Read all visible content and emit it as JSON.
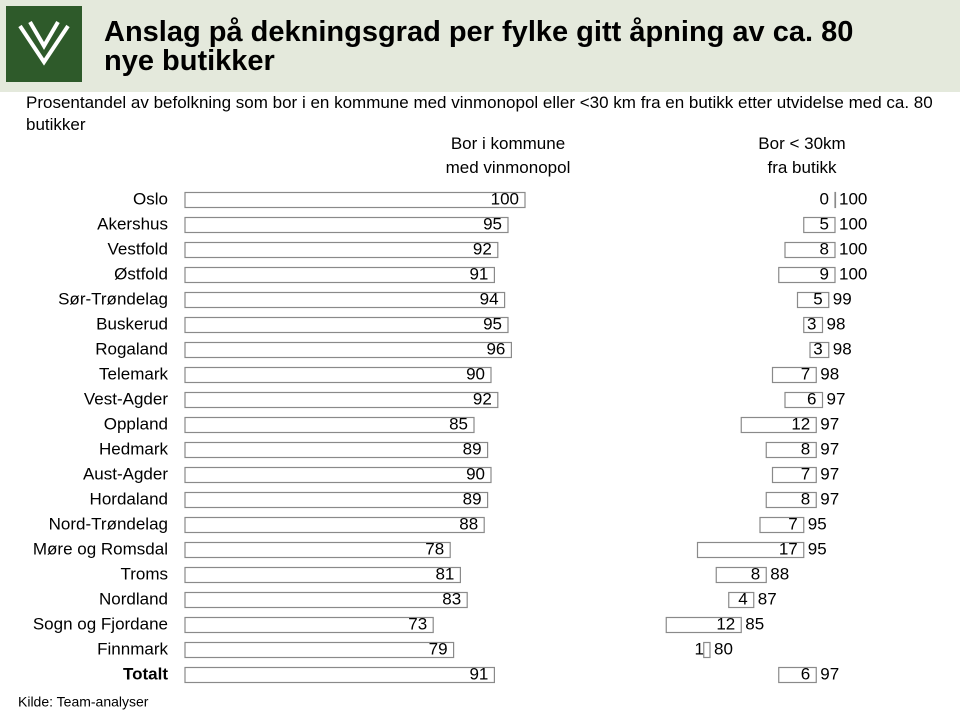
{
  "chart_data": {
    "type": "bar",
    "title": "Anslag på dekningsgrad per fylke gitt åpning av ca. 80 nye butikker",
    "subtitle": "Prosentandel av befolkning som bor i en kommune med vinmonopol eller <30 km fra en butikk etter utvidelse med ca. 80 butikker",
    "source": "Kilde: Team-analyser",
    "categories": [
      "Oslo",
      "Akershus",
      "Vestfold",
      "Østfold",
      "Sør-Trøndelag",
      "Buskerud",
      "Rogaland",
      "Telemark",
      "Vest-Agder",
      "Oppland",
      "Hedmark",
      "Aust-Agder",
      "Hordaland",
      "Nord-Trøndelag",
      "Møre og Romsdal",
      "Troms",
      "Nordland",
      "Sogn og Fjordane",
      "Finnmark",
      "Totalt"
    ],
    "series": [
      {
        "name": "Bor i kommune med vinmonopol",
        "color": "#ffffff",
        "values": [
          100,
          95,
          92,
          91,
          94,
          95,
          96,
          90,
          92,
          85,
          89,
          90,
          89,
          88,
          78,
          81,
          83,
          73,
          79,
          91
        ]
      },
      {
        "name": "Bor < 30km fra butikk",
        "color": "#ffffff",
        "values": [
          0,
          5,
          8,
          9,
          5,
          3,
          3,
          7,
          6,
          12,
          8,
          7,
          8,
          7,
          17,
          8,
          4,
          12,
          1,
          6
        ]
      }
    ],
    "totals": [
      100,
      100,
      100,
      100,
      99,
      98,
      98,
      98,
      97,
      97,
      97,
      97,
      97,
      95,
      95,
      88,
      87,
      85,
      80,
      97
    ]
  }
}
